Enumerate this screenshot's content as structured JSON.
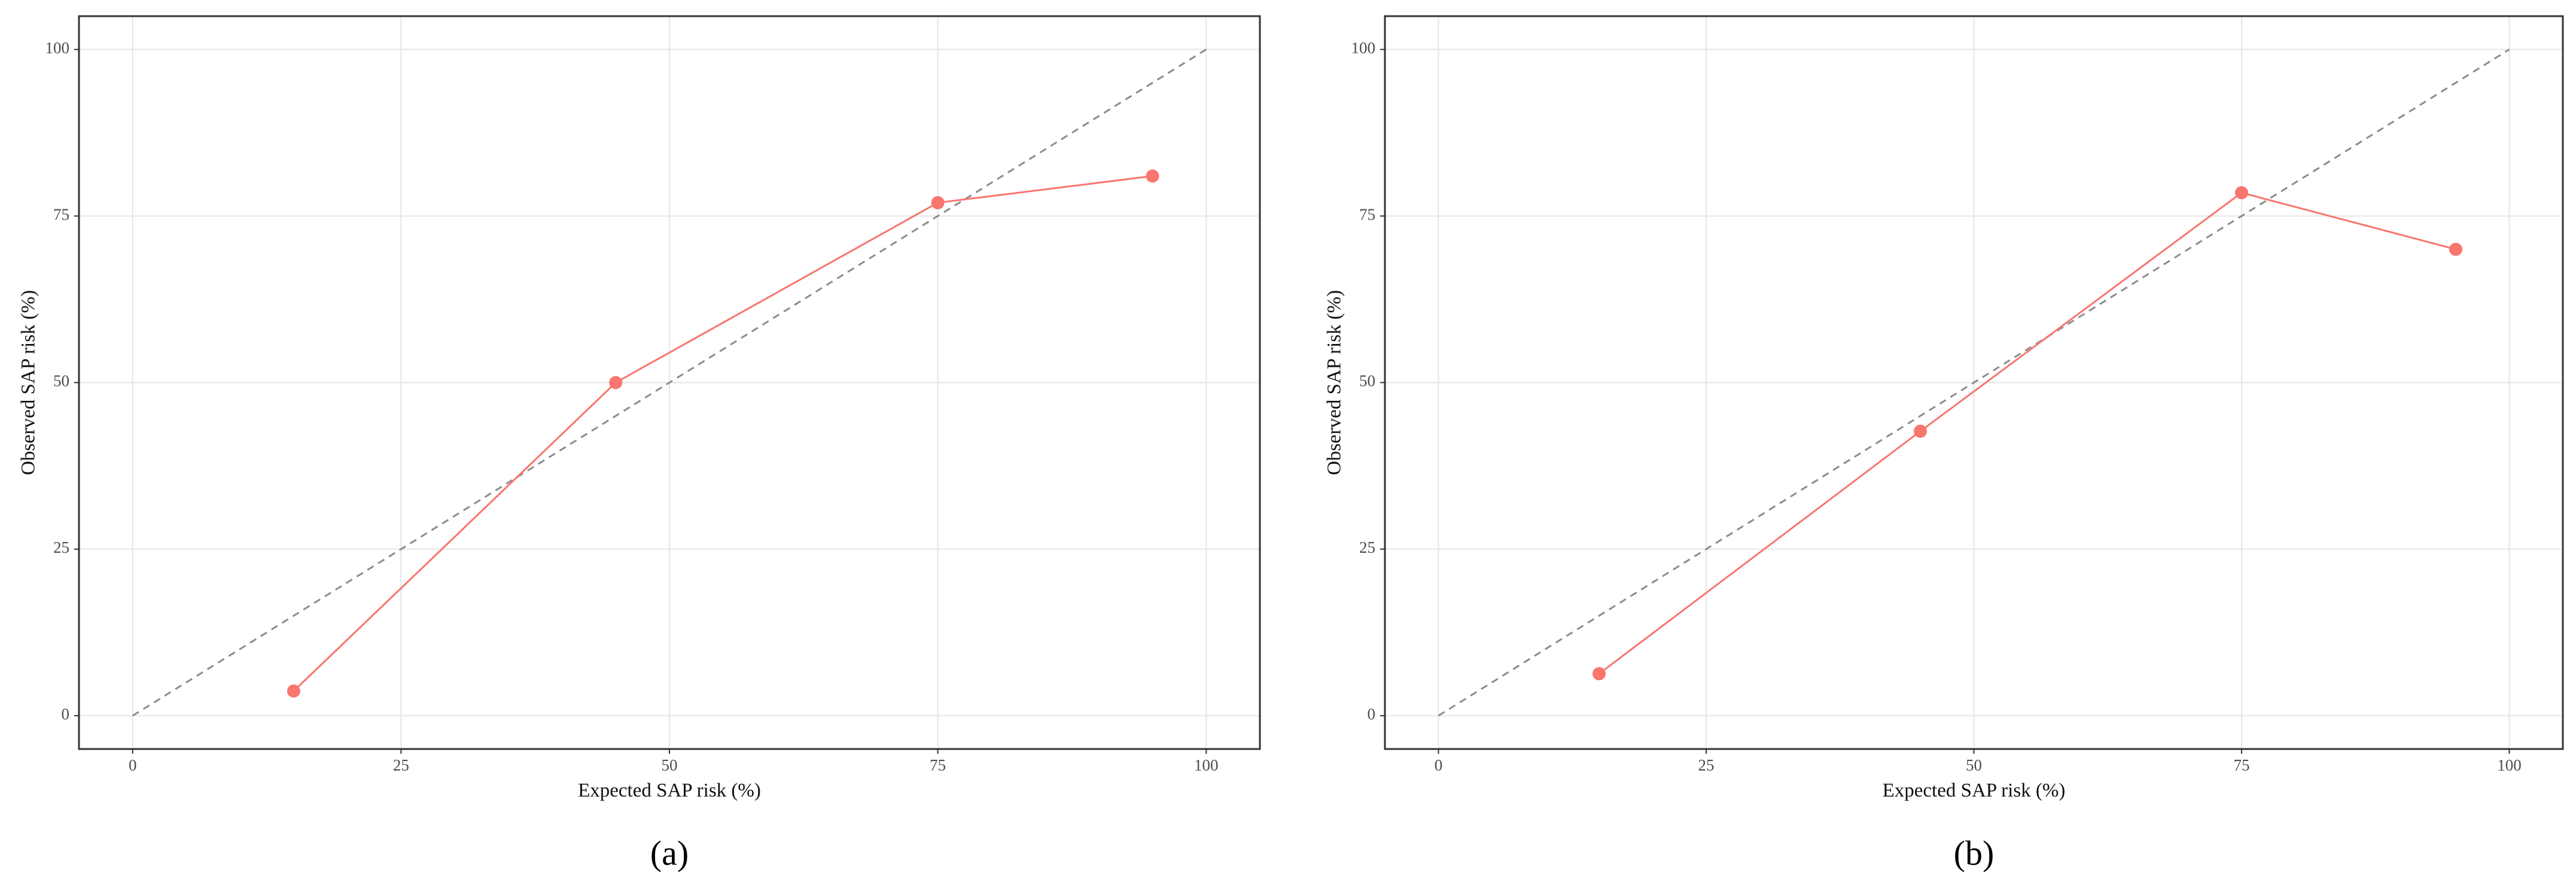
{
  "chart_data": [
    {
      "type": "line",
      "x_label": "Expected SAP risk (%)",
      "y_label": "Observed SAP risk (%)",
      "caption": "(a)",
      "x": [
        15,
        45,
        75,
        95
      ],
      "series": [
        {
          "color": "#F8766D",
          "values": [
            3.7,
            50,
            77,
            81
          ]
        }
      ],
      "reference_line": {
        "x": [
          0,
          100
        ],
        "y": [
          0,
          100
        ],
        "color": "#8c8c8c"
      },
      "xlim": [
        -5,
        105
      ],
      "ylim": [
        -5,
        105
      ],
      "xticks": [
        0,
        25,
        50,
        75,
        100
      ],
      "yticks": [
        0,
        25,
        50,
        75,
        100
      ],
      "grid": true
    },
    {
      "type": "line",
      "x_label": "Expected SAP risk (%)",
      "y_label": "Observed SAP risk (%)",
      "caption": "(b)",
      "x": [
        15,
        45,
        75,
        95
      ],
      "series": [
        {
          "color": "#F8766D",
          "values": [
            6.3,
            42.7,
            78.5,
            70
          ]
        }
      ],
      "reference_line": {
        "x": [
          0,
          100
        ],
        "y": [
          0,
          100
        ],
        "color": "#8c8c8c"
      },
      "xlim": [
        -5,
        105
      ],
      "ylim": [
        -5,
        105
      ],
      "xticks": [
        0,
        25,
        50,
        75,
        100
      ],
      "yticks": [
        0,
        25,
        50,
        75,
        100
      ],
      "grid": true
    }
  ]
}
